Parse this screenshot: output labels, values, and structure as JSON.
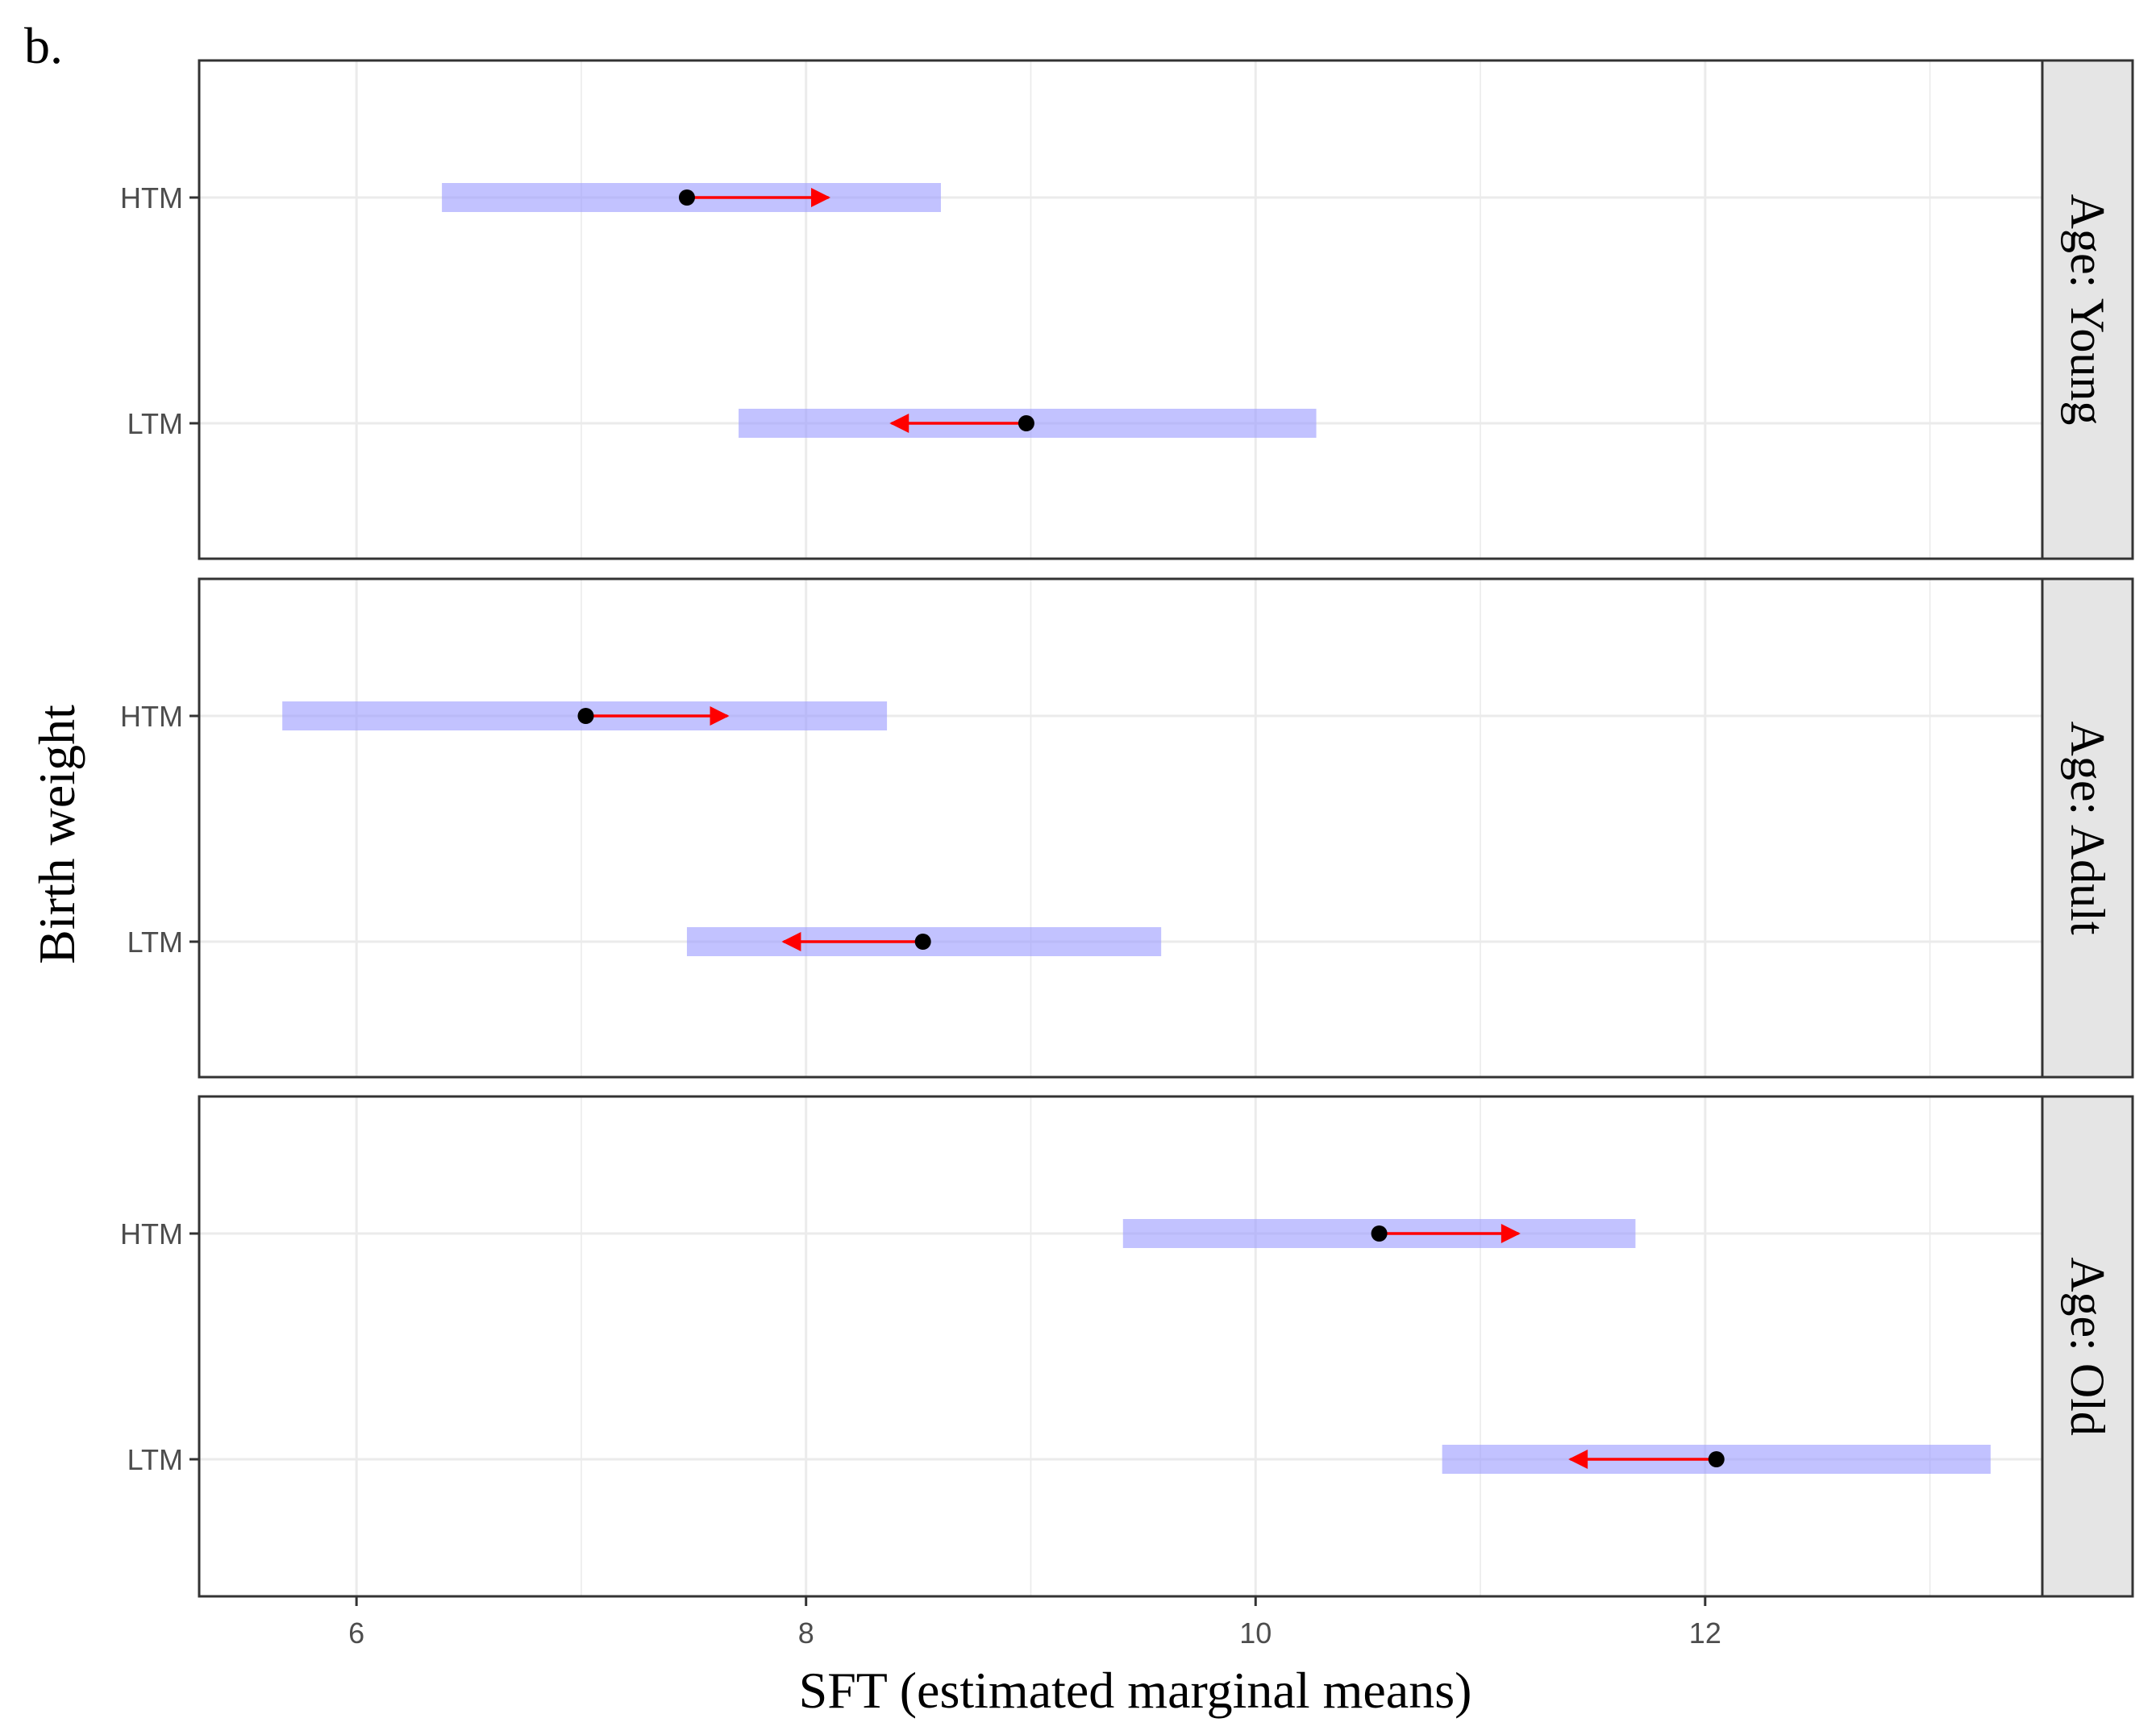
{
  "figure_label": "b.",
  "chart_data": {
    "type": "scatter",
    "subtype": "faceted interval plot with comparison arrows",
    "xlabel": "SFT (estimated marginal means)",
    "ylabel": "Birth weight",
    "xlim": [
      5.3,
      13.5
    ],
    "x_ticks": [
      6,
      8,
      10,
      12
    ],
    "x_tick_labels": [
      "6",
      "8",
      "10",
      "12"
    ],
    "grid": true,
    "colors": {
      "ci_band": "#9999ff",
      "arrow": "#ff0000",
      "point": "#000000",
      "grid": "#ebebeb",
      "strip_fill": "#e5e5e5"
    },
    "panels": [
      {
        "strip_label": "Age: Young",
        "rows": [
          {
            "label": "HTM",
            "emmean": 7.47,
            "ci_low": 6.38,
            "ci_high": 8.6,
            "arrow_to": 8.1
          },
          {
            "label": "LTM",
            "emmean": 8.98,
            "ci_low": 7.7,
            "ci_high": 10.27,
            "arrow_to": 8.38
          }
        ]
      },
      {
        "strip_label": "Age: Adult",
        "rows": [
          {
            "label": "HTM",
            "emmean": 7.02,
            "ci_low": 5.67,
            "ci_high": 8.36,
            "arrow_to": 7.65
          },
          {
            "label": "LTM",
            "emmean": 8.52,
            "ci_low": 7.47,
            "ci_high": 9.58,
            "arrow_to": 7.9
          }
        ]
      },
      {
        "strip_label": "Age: Old",
        "rows": [
          {
            "label": "HTM",
            "emmean": 10.55,
            "ci_low": 9.41,
            "ci_high": 11.69,
            "arrow_to": 11.17
          },
          {
            "label": "LTM",
            "emmean": 12.05,
            "ci_low": 10.83,
            "ci_high": 13.27,
            "arrow_to": 11.4
          }
        ]
      }
    ]
  }
}
